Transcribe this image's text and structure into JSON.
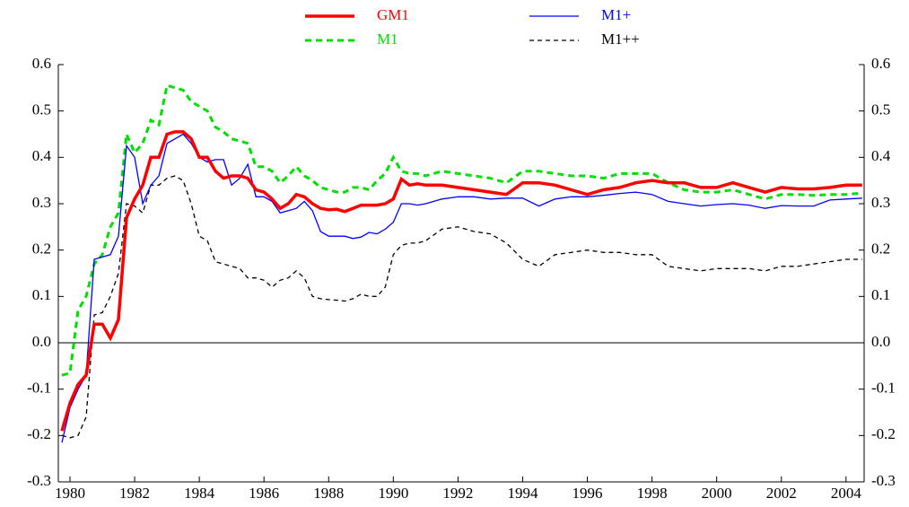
{
  "chart_data": {
    "type": "line",
    "x": [
      1979.75,
      1980,
      1980.25,
      1980.5,
      1980.75,
      1981,
      1981.25,
      1981.5,
      1981.75,
      1982,
      1982.25,
      1982.5,
      1982.75,
      1983,
      1983.25,
      1983.5,
      1983.75,
      1984,
      1984.25,
      1984.5,
      1984.75,
      1985,
      1985.25,
      1985.5,
      1985.75,
      1986,
      1986.25,
      1986.5,
      1986.75,
      1987,
      1987.25,
      1987.5,
      1987.75,
      1988,
      1988.25,
      1988.5,
      1988.75,
      1989,
      1989.25,
      1989.5,
      1989.75,
      1990,
      1990.25,
      1990.5,
      1990.75,
      1991,
      1991.5,
      1992,
      1992.5,
      1993,
      1993.5,
      1994,
      1994.5,
      1995,
      1995.5,
      1996,
      1996.5,
      1997,
      1997.5,
      1998,
      1998.5,
      1999,
      1999.5,
      2000,
      2000.5,
      2001,
      2001.5,
      2002,
      2002.5,
      2003,
      2003.5,
      2004,
      2004.5
    ],
    "series": [
      {
        "name": "GM1",
        "color": "#ff0000",
        "dash": false,
        "values": [
          -0.19,
          -0.13,
          -0.09,
          -0.07,
          0.04,
          0.04,
          0.01,
          0.05,
          0.27,
          0.31,
          0.34,
          0.4,
          0.4,
          0.45,
          0.455,
          0.455,
          0.44,
          0.4,
          0.4,
          0.37,
          0.355,
          0.36,
          0.36,
          0.355,
          0.33,
          0.325,
          0.31,
          0.29,
          0.3,
          0.32,
          0.315,
          0.3,
          0.29,
          0.287,
          0.288,
          0.283,
          0.29,
          0.297,
          0.297,
          0.297,
          0.3,
          0.31,
          0.353,
          0.34,
          0.343,
          0.34,
          0.34,
          0.335,
          0.33,
          0.325,
          0.32,
          0.345,
          0.345,
          0.34,
          0.33,
          0.32,
          0.33,
          0.335,
          0.345,
          0.35,
          0.345,
          0.345,
          0.335,
          0.335,
          0.345,
          0.335,
          0.325,
          0.335,
          0.332,
          0.332,
          0.335,
          0.34,
          0.34
        ]
      },
      {
        "name": "M1+",
        "color": "#0000ff",
        "dash": false,
        "values": [
          -0.215,
          -0.14,
          -0.1,
          -0.07,
          0.18,
          0.185,
          0.19,
          0.23,
          0.425,
          0.4,
          0.3,
          0.34,
          0.36,
          0.43,
          0.44,
          0.45,
          0.43,
          0.4,
          0.39,
          0.395,
          0.395,
          0.34,
          0.355,
          0.385,
          0.315,
          0.315,
          0.305,
          0.28,
          0.285,
          0.29,
          0.305,
          0.285,
          0.24,
          0.23,
          0.23,
          0.23,
          0.225,
          0.228,
          0.238,
          0.235,
          0.245,
          0.26,
          0.3,
          0.3,
          0.297,
          0.3,
          0.31,
          0.315,
          0.315,
          0.31,
          0.312,
          0.312,
          0.295,
          0.31,
          0.315,
          0.315,
          0.318,
          0.322,
          0.325,
          0.32,
          0.305,
          0.3,
          0.295,
          0.298,
          0.3,
          0.297,
          0.29,
          0.296,
          0.295,
          0.295,
          0.308,
          0.31,
          0.312
        ]
      },
      {
        "name": "M1",
        "color": "#00e000",
        "dash": true,
        "values": [
          -0.07,
          -0.065,
          0.07,
          0.1,
          0.17,
          0.19,
          0.25,
          0.28,
          0.45,
          0.41,
          0.43,
          0.48,
          0.47,
          0.555,
          0.55,
          0.545,
          0.52,
          0.51,
          0.5,
          0.465,
          0.455,
          0.44,
          0.435,
          0.43,
          0.38,
          0.38,
          0.37,
          0.345,
          0.36,
          0.38,
          0.36,
          0.35,
          0.335,
          0.33,
          0.325,
          0.325,
          0.335,
          0.335,
          0.33,
          0.35,
          0.365,
          0.4,
          0.37,
          0.365,
          0.365,
          0.36,
          0.37,
          0.365,
          0.36,
          0.355,
          0.345,
          0.37,
          0.37,
          0.365,
          0.36,
          0.36,
          0.355,
          0.365,
          0.365,
          0.365,
          0.345,
          0.33,
          0.325,
          0.325,
          0.33,
          0.32,
          0.31,
          0.32,
          0.32,
          0.318,
          0.32,
          0.32,
          0.323
        ]
      },
      {
        "name": "M1++",
        "color": "#000000",
        "dash": true,
        "values": [
          -0.2,
          -0.205,
          -0.2,
          -0.16,
          0.06,
          0.065,
          0.1,
          0.15,
          0.3,
          0.295,
          0.28,
          0.34,
          0.34,
          0.355,
          0.36,
          0.35,
          0.3,
          0.23,
          0.22,
          0.175,
          0.17,
          0.165,
          0.16,
          0.14,
          0.14,
          0.135,
          0.12,
          0.135,
          0.14,
          0.155,
          0.14,
          0.1,
          0.095,
          0.093,
          0.092,
          0.09,
          0.095,
          0.105,
          0.1,
          0.1,
          0.12,
          0.19,
          0.21,
          0.215,
          0.215,
          0.22,
          0.245,
          0.25,
          0.24,
          0.235,
          0.215,
          0.18,
          0.165,
          0.19,
          0.195,
          0.2,
          0.195,
          0.195,
          0.19,
          0.19,
          0.165,
          0.16,
          0.155,
          0.16,
          0.16,
          0.16,
          0.155,
          0.165,
          0.165,
          0.17,
          0.175,
          0.18,
          0.18
        ]
      }
    ],
    "xlim": [
      1979.64,
      2004.56
    ],
    "xticks": [
      1980,
      1982,
      1984,
      1986,
      1988,
      1990,
      1992,
      1994,
      1996,
      1998,
      2000,
      2002,
      2004
    ],
    "ylim": [
      -0.3,
      0.6
    ],
    "yticks": [
      -0.3,
      -0.2,
      -0.1,
      {
        "value": 0,
        "label": "0.0"
      },
      0.1,
      0.2,
      0.3,
      0.4,
      0.5,
      0.6
    ],
    "right_axis_mirror": true,
    "zero_line": true,
    "legend": "top"
  }
}
